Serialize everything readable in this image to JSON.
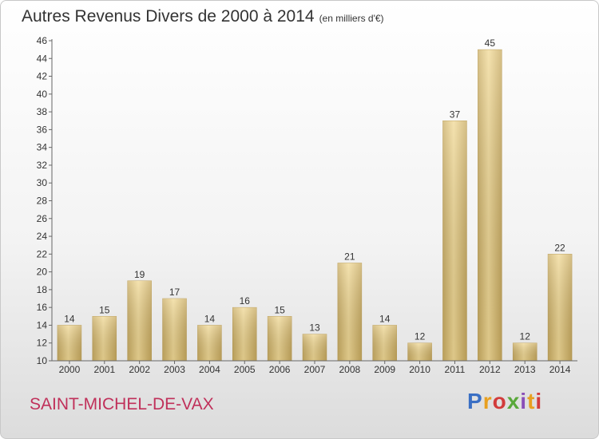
{
  "header": {
    "title": "Autres Revenus Divers de 2000 à 2014",
    "unit": "(en milliers d'€)"
  },
  "footer": {
    "commune": "SAINT-MICHEL-DE-VAX",
    "logo": "Proxiti"
  },
  "chart_data": {
    "type": "bar",
    "title": "Autres Revenus Divers de 2000 à 2014",
    "subtitle": "(en milliers d'€)",
    "xlabel": "",
    "ylabel": "",
    "categories": [
      "2000",
      "2001",
      "2002",
      "2003",
      "2004",
      "2005",
      "2006",
      "2007",
      "2008",
      "2009",
      "2010",
      "2011",
      "2012",
      "2013",
      "2014"
    ],
    "values": [
      14,
      15,
      19,
      17,
      14,
      16,
      15,
      13,
      21,
      14,
      12,
      37,
      45,
      12,
      22
    ],
    "ylim": [
      10,
      46
    ],
    "yticks": [
      10,
      12,
      14,
      16,
      18,
      20,
      22,
      24,
      26,
      28,
      30,
      32,
      34,
      36,
      38,
      40,
      42,
      44,
      46
    ],
    "grid": false,
    "data_labels": true,
    "bar_color": "#e8cf8a"
  }
}
